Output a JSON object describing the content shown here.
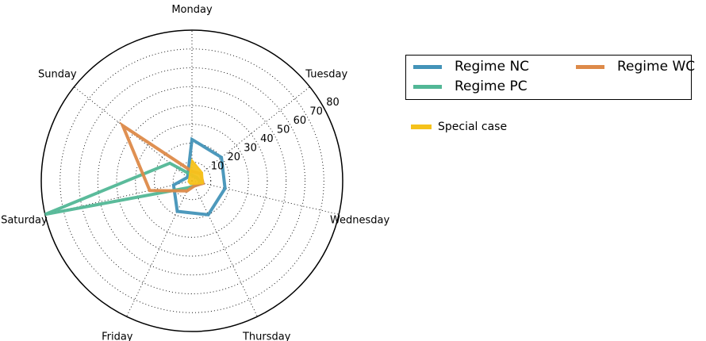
{
  "chart_data": {
    "type": "radar",
    "categories": [
      "Monday",
      "Tuesday",
      "Wednesday",
      "Thursday",
      "Friday",
      "Saturday",
      "Sunday"
    ],
    "rlim": [
      0,
      80
    ],
    "rticks": [
      10,
      20,
      30,
      40,
      50,
      60,
      70,
      80
    ],
    "grid": true,
    "legend_position": "right",
    "series": [
      {
        "name": "Regime NC",
        "color": "#4393b8",
        "values": [
          22,
          20,
          18,
          20,
          18,
          10,
          3
        ]
      },
      {
        "name": "Regime PC",
        "color": "#52b796",
        "values": [
          3,
          3,
          5,
          3,
          4,
          80,
          15
        ]
      },
      {
        "name": "Regime WC",
        "color": "#dd8a49",
        "values": [
          5,
          6,
          6,
          3,
          6,
          23,
          47
        ]
      },
      {
        "name": "Special case",
        "color": "#f5c21b",
        "values": [
          11,
          7,
          6,
          2,
          2,
          2,
          2
        ],
        "filled": true
      }
    ]
  }
}
